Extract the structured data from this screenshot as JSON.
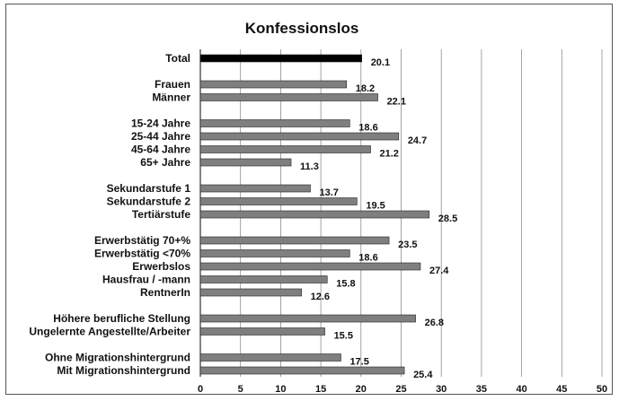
{
  "chart_data": {
    "type": "bar",
    "orientation": "horizontal",
    "title": "Konfessionslos",
    "xlabel": "",
    "ylabel": "",
    "xlim": [
      0,
      50
    ],
    "x_ticks": [
      0,
      5,
      10,
      15,
      20,
      25,
      30,
      35,
      40,
      45,
      50
    ],
    "grid": true,
    "highlight_color": "#000000",
    "bar_color": "#7f7f7f",
    "groups": [
      {
        "categories": [
          "Total"
        ],
        "values": [
          20.1
        ],
        "highlight": true
      },
      {
        "categories": [
          "Frauen",
          "Männer"
        ],
        "values": [
          18.2,
          22.1
        ]
      },
      {
        "categories": [
          "15-24 Jahre",
          "25-44 Jahre",
          "45-64 Jahre",
          "65+ Jahre"
        ],
        "values": [
          18.6,
          24.7,
          21.2,
          11.3
        ]
      },
      {
        "categories": [
          "Sekundarstufe 1",
          "Sekundarstufe 2",
          "Tertiärstufe"
        ],
        "values": [
          13.7,
          19.5,
          28.5
        ]
      },
      {
        "categories": [
          "Erwerbstätig 70+%",
          "Erwerbstätig <70%",
          "Erwerbslos",
          "Hausfrau / -mann",
          "RentnerIn"
        ],
        "values": [
          23.5,
          18.6,
          27.4,
          15.8,
          12.6
        ]
      },
      {
        "categories": [
          "Höhere berufliche Stellung",
          "Ungelernte Angestellte/Arbeiter"
        ],
        "values": [
          26.8,
          15.5
        ]
      },
      {
        "categories": [
          "Ohne Migrationshintergrund",
          "Mit Migrationshintergrund"
        ],
        "values": [
          17.5,
          25.4
        ]
      }
    ]
  }
}
